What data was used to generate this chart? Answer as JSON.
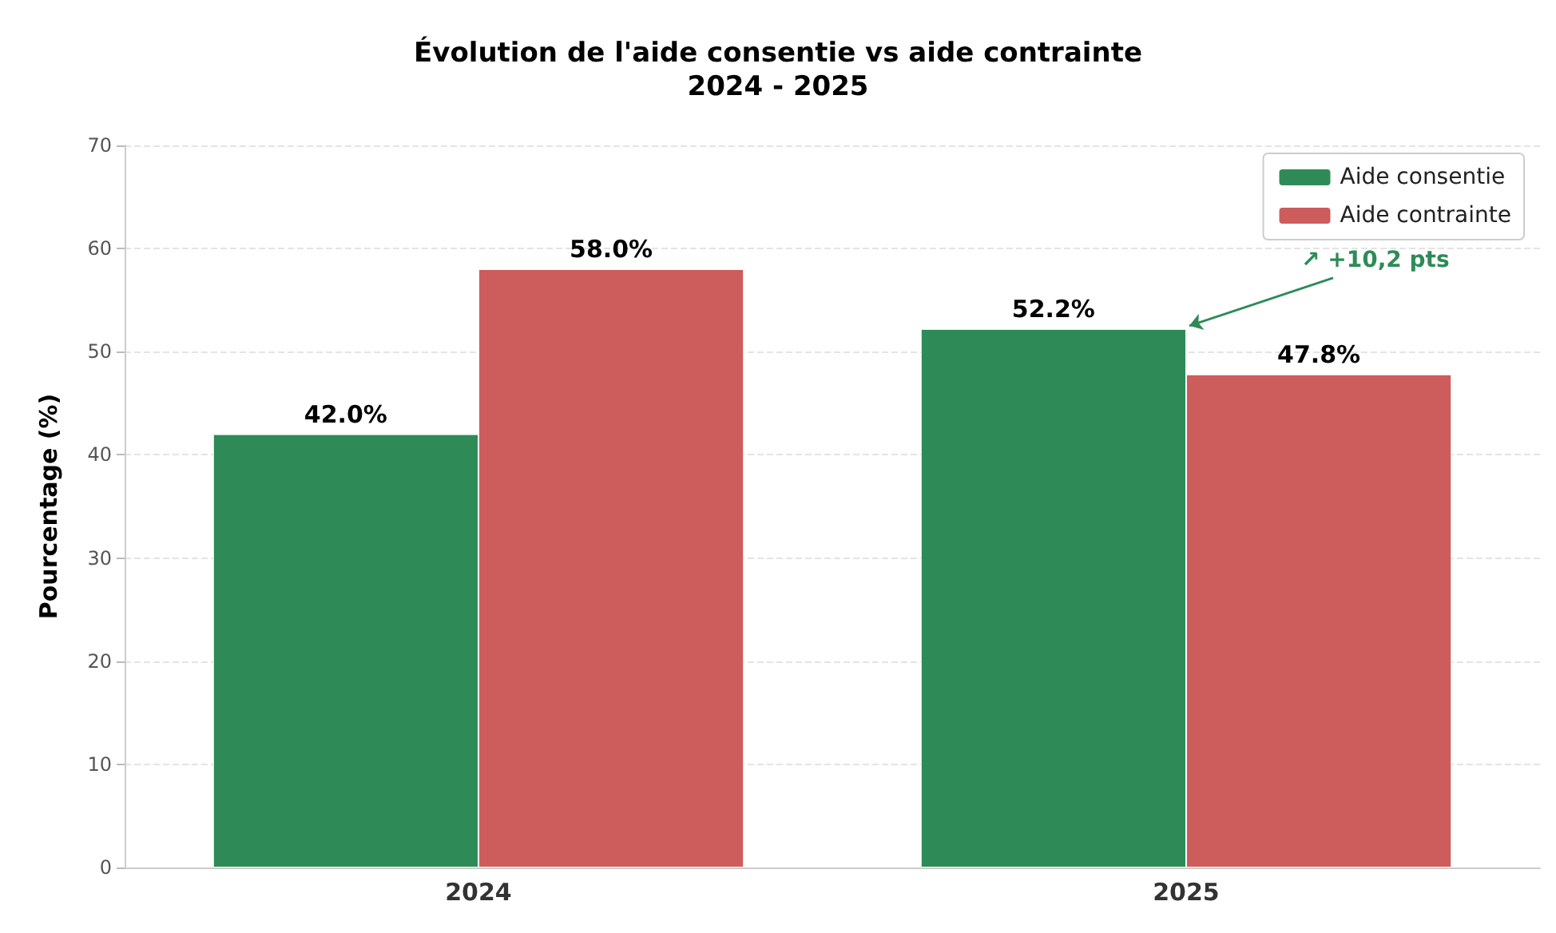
{
  "chart_data": {
    "type": "bar",
    "title": "Évolution de l'aide consentie vs aide contrainte",
    "subtitle": "2024 - 2025",
    "ylabel": "Pourcentage (%)",
    "categories": [
      "2024",
      "2025"
    ],
    "series": [
      {
        "name": "Aide consentie",
        "color": "#2e8b57",
        "values": [
          42.0,
          52.2
        ],
        "value_labels": [
          "42.0%",
          "52.2%"
        ]
      },
      {
        "name": "Aide contrainte",
        "color": "#cd5c5c",
        "values": [
          58.0,
          47.8
        ],
        "value_labels": [
          "58.0%",
          "47.8%"
        ]
      }
    ],
    "ylim": [
      0,
      70
    ],
    "yticks": [
      0,
      10,
      20,
      30,
      40,
      50,
      60,
      70
    ],
    "grid": "y",
    "legend": "top right",
    "annotations": [
      {
        "text": "↗ +10,2 pts",
        "x": "2025",
        "y": 52.2
      }
    ]
  }
}
